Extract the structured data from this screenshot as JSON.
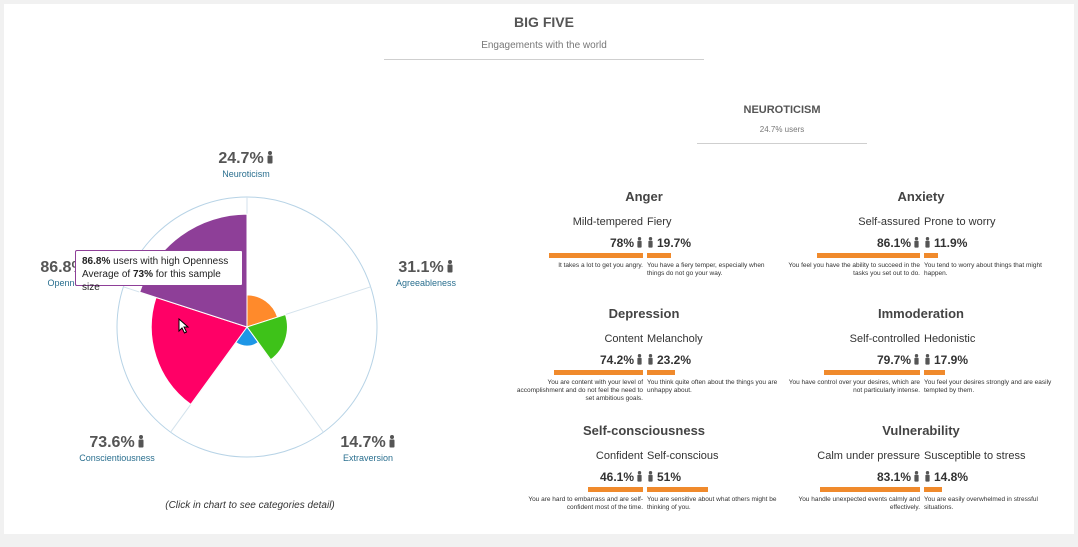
{
  "header": {
    "title": "BIG FIVE",
    "subtitle": "Engagements with the world"
  },
  "chart_data": {
    "type": "polar-area",
    "slices": [
      {
        "name": "Neuroticism",
        "value": 24.7,
        "color": "#ff8a2b"
      },
      {
        "name": "Agreeableness",
        "value": 31.1,
        "color": "#3ec219"
      },
      {
        "name": "Extraversion",
        "value": 14.7,
        "color": "#1e96e6"
      },
      {
        "name": "Conscientiousness",
        "value": 73.6,
        "color": "#ff0066"
      },
      {
        "name": "Openness",
        "value": 86.8,
        "color": "#8e3f98"
      }
    ],
    "rmax": 100
  },
  "traits": {
    "neuroticism": {
      "pct": "24.7%",
      "name": "Neuroticism"
    },
    "agreeableness": {
      "pct": "31.1%",
      "name": "Agreeableness"
    },
    "extraversion": {
      "pct": "14.7%",
      "name": "Extraversion"
    },
    "conscientiousness": {
      "pct": "73.6%",
      "name": "Conscientiousness"
    },
    "openness": {
      "pct": "86.8%",
      "name": "Openness"
    }
  },
  "tooltip": {
    "pct": "86.8%",
    "line1_rest": " users with high Openness",
    "line2_prefix": "Average of ",
    "avg": "73%",
    "line2_suffix": " for this sample size"
  },
  "hint": "(Click in chart to see categories detail)",
  "detail": {
    "title": "NEUROTICISM",
    "users": "24.7% users",
    "facets": [
      {
        "title": "Anger",
        "lo_name": "Mild-tempered",
        "hi_name": "Fiery",
        "lo_pct": "78%",
        "hi_pct": "19.7%",
        "lo_value": 78,
        "hi_value": 19.7,
        "lo_desc": "It takes a lot to get you angry.",
        "hi_desc": "You have a fiery temper, especially when things do not go your way."
      },
      {
        "title": "Anxiety",
        "lo_name": "Self-assured",
        "hi_name": "Prone to worry",
        "lo_pct": "86.1%",
        "hi_pct": "11.9%",
        "lo_value": 86.1,
        "hi_value": 11.9,
        "lo_desc": "You feel you have the ability to succeed in the tasks you set out to do.",
        "hi_desc": "You tend to worry about things that might happen."
      },
      {
        "title": "Depression",
        "lo_name": "Content",
        "hi_name": "Melancholy",
        "lo_pct": "74.2%",
        "hi_pct": "23.2%",
        "lo_value": 74.2,
        "hi_value": 23.2,
        "lo_desc": "You are content with your level of accomplishment and do not feel the need to set ambitious goals.",
        "hi_desc": "You think quite often about the things you are unhappy about."
      },
      {
        "title": "Immoderation",
        "lo_name": "Self-controlled",
        "hi_name": "Hedonistic",
        "lo_pct": "79.7%",
        "hi_pct": "17.9%",
        "lo_value": 79.7,
        "hi_value": 17.9,
        "lo_desc": "You have control over your desires, which are not particularly intense.",
        "hi_desc": "You feel your desires strongly and are easily tempted by them."
      },
      {
        "title": "Self-consciousness",
        "lo_name": "Confident",
        "hi_name": "Self-conscious",
        "lo_pct": "46.1%",
        "hi_pct": "51%",
        "lo_value": 46.1,
        "hi_value": 51,
        "lo_desc": "You are hard to embarrass and are self-confident most of the time.",
        "hi_desc": "You are sensitive about what others might be thinking of you."
      },
      {
        "title": "Vulnerability",
        "lo_name": "Calm under pressure",
        "hi_name": "Susceptible to stress",
        "lo_pct": "83.1%",
        "hi_pct": "14.8%",
        "lo_value": 83.1,
        "hi_value": 14.8,
        "lo_desc": "You handle unexpected events calmly and effectively.",
        "hi_desc": "You are easily overwhelmed in stressful situations."
      }
    ]
  }
}
